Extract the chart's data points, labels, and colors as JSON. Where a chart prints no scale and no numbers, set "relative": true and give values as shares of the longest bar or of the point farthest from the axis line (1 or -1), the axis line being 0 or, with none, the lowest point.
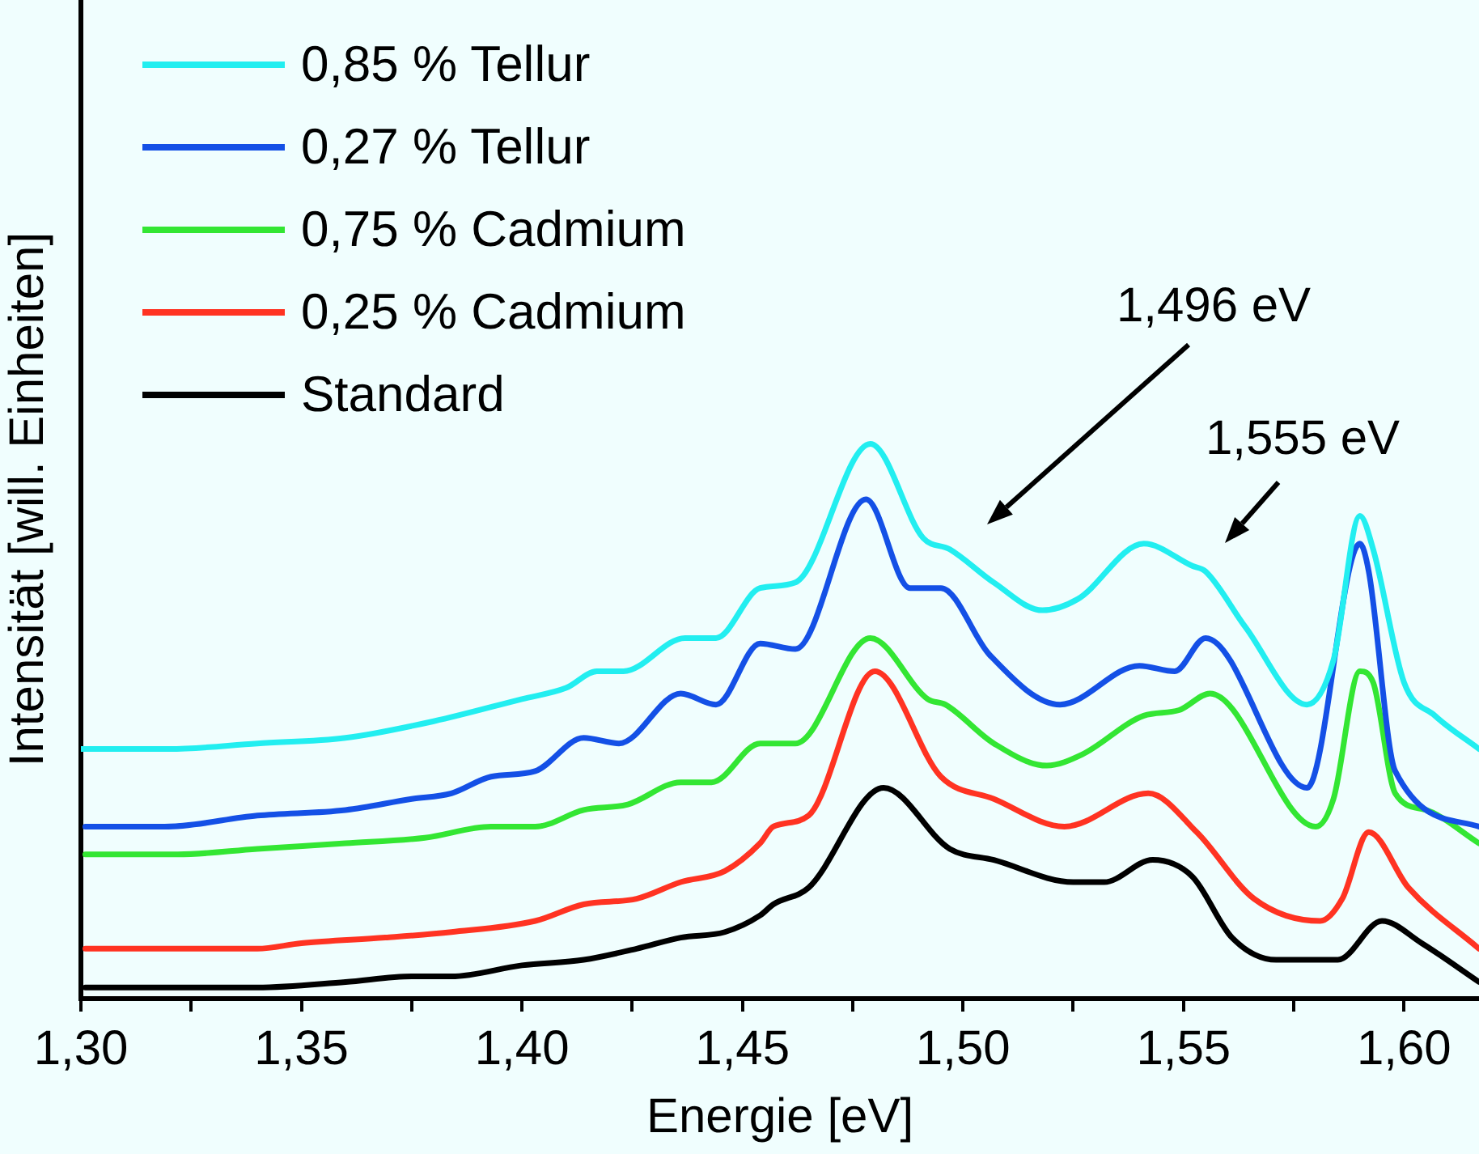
{
  "chart_data": {
    "type": "line",
    "xlabel": "Energie [eV]",
    "ylabel": "Intensität [will. Einheiten]",
    "relative": true,
    "xlim": [
      1.3,
      1.617
    ],
    "xticks": [
      {
        "value": 1.3,
        "label": "1,30"
      },
      {
        "value": 1.325,
        "label": null
      },
      {
        "value": 1.35,
        "label": "1,35"
      },
      {
        "value": 1.375,
        "label": null
      },
      {
        "value": 1.4,
        "label": "1,40"
      },
      {
        "value": 1.425,
        "label": null
      },
      {
        "value": 1.45,
        "label": "1,45"
      },
      {
        "value": 1.475,
        "label": null
      },
      {
        "value": 1.5,
        "label": "1,50"
      },
      {
        "value": 1.525,
        "label": null
      },
      {
        "value": 1.55,
        "label": "1,55"
      },
      {
        "value": 1.575,
        "label": null
      },
      {
        "value": 1.6,
        "label": "1,60"
      }
    ],
    "grid": false,
    "legend": "top left",
    "marker": "none",
    "line_style": "solid",
    "annotations": [
      "1,496 eV",
      "1,555 eV"
    ],
    "series": [
      {
        "name": "0,85 % Tellur",
        "color": "#22eef0",
        "x": [
          1.3,
          1.32,
          1.34,
          1.36,
          1.38,
          1.4,
          1.41,
          1.417,
          1.423,
          1.437,
          1.444,
          1.454,
          1.462,
          1.479,
          1.491,
          1.497,
          1.507,
          1.518,
          1.526,
          1.541,
          1.552,
          1.555,
          1.564,
          1.578,
          1.584,
          1.59,
          1.593,
          1.6,
          1.607,
          1.617
        ],
        "values": [
          0.45,
          0.45,
          0.46,
          0.47,
          0.5,
          0.54,
          0.56,
          0.59,
          0.59,
          0.65,
          0.65,
          0.74,
          0.75,
          1.0,
          0.83,
          0.81,
          0.75,
          0.7,
          0.72,
          0.82,
          0.78,
          0.77,
          0.67,
          0.53,
          0.61,
          0.87,
          0.81,
          0.57,
          0.51,
          0.45
        ]
      },
      {
        "name": "0,27 % Tellur",
        "color": "#1450e6",
        "x": [
          1.301,
          1.319,
          1.34,
          1.36,
          1.375,
          1.384,
          1.393,
          1.403,
          1.414,
          1.422,
          1.436,
          1.444,
          1.454,
          1.462,
          1.478,
          1.488,
          1.495,
          1.506,
          1.522,
          1.54,
          1.548,
          1.555,
          1.578,
          1.59,
          1.592,
          1.598,
          1.617
        ],
        "values": [
          0.31,
          0.31,
          0.33,
          0.34,
          0.36,
          0.37,
          0.4,
          0.41,
          0.47,
          0.46,
          0.55,
          0.53,
          0.64,
          0.63,
          0.9,
          0.74,
          0.74,
          0.62,
          0.53,
          0.6,
          0.59,
          0.65,
          0.38,
          0.82,
          0.77,
          0.41,
          0.31
        ]
      },
      {
        "name": "0,75 % Cadmium",
        "color": "#33e633",
        "x": [
          1.301,
          1.322,
          1.34,
          1.36,
          1.378,
          1.393,
          1.403,
          1.414,
          1.424,
          1.436,
          1.443,
          1.454,
          1.462,
          1.479,
          1.492,
          1.496,
          1.507,
          1.519,
          1.527,
          1.541,
          1.549,
          1.556,
          1.58,
          1.584,
          1.59,
          1.593,
          1.598,
          1.605,
          1.617
        ],
        "values": [
          0.26,
          0.26,
          0.27,
          0.28,
          0.29,
          0.31,
          0.31,
          0.34,
          0.35,
          0.39,
          0.39,
          0.46,
          0.46,
          0.65,
          0.54,
          0.53,
          0.46,
          0.42,
          0.44,
          0.51,
          0.52,
          0.55,
          0.31,
          0.36,
          0.59,
          0.57,
          0.37,
          0.34,
          0.28
        ]
      },
      {
        "name": "0,25 % Cadmium",
        "color": "#ff3322",
        "x": [
          1.301,
          1.309,
          1.324,
          1.34,
          1.35,
          1.369,
          1.384,
          1.403,
          1.414,
          1.426,
          1.436,
          1.446,
          1.454,
          1.457,
          1.465,
          1.48,
          1.495,
          1.507,
          1.523,
          1.542,
          1.553,
          1.566,
          1.581,
          1.586,
          1.592,
          1.601,
          1.617
        ],
        "values": [
          0.09,
          0.09,
          0.09,
          0.09,
          0.1,
          0.11,
          0.12,
          0.14,
          0.17,
          0.18,
          0.21,
          0.23,
          0.28,
          0.31,
          0.33,
          0.59,
          0.4,
          0.36,
          0.31,
          0.37,
          0.3,
          0.18,
          0.14,
          0.18,
          0.3,
          0.2,
          0.09
        ]
      },
      {
        "name": "Standard",
        "color": "#000000",
        "x": [
          1.301,
          1.322,
          1.34,
          1.36,
          1.375,
          1.384,
          1.4,
          1.414,
          1.426,
          1.436,
          1.446,
          1.454,
          1.457,
          1.465,
          1.482,
          1.497,
          1.507,
          1.525,
          1.532,
          1.543,
          1.552,
          1.561,
          1.571,
          1.585,
          1.595,
          1.604,
          1.617
        ],
        "values": [
          0.02,
          0.02,
          0.02,
          0.03,
          0.04,
          0.04,
          0.06,
          0.07,
          0.09,
          0.11,
          0.12,
          0.15,
          0.17,
          0.2,
          0.38,
          0.27,
          0.25,
          0.21,
          0.21,
          0.25,
          0.22,
          0.11,
          0.07,
          0.07,
          0.14,
          0.1,
          0.03
        ]
      }
    ]
  }
}
